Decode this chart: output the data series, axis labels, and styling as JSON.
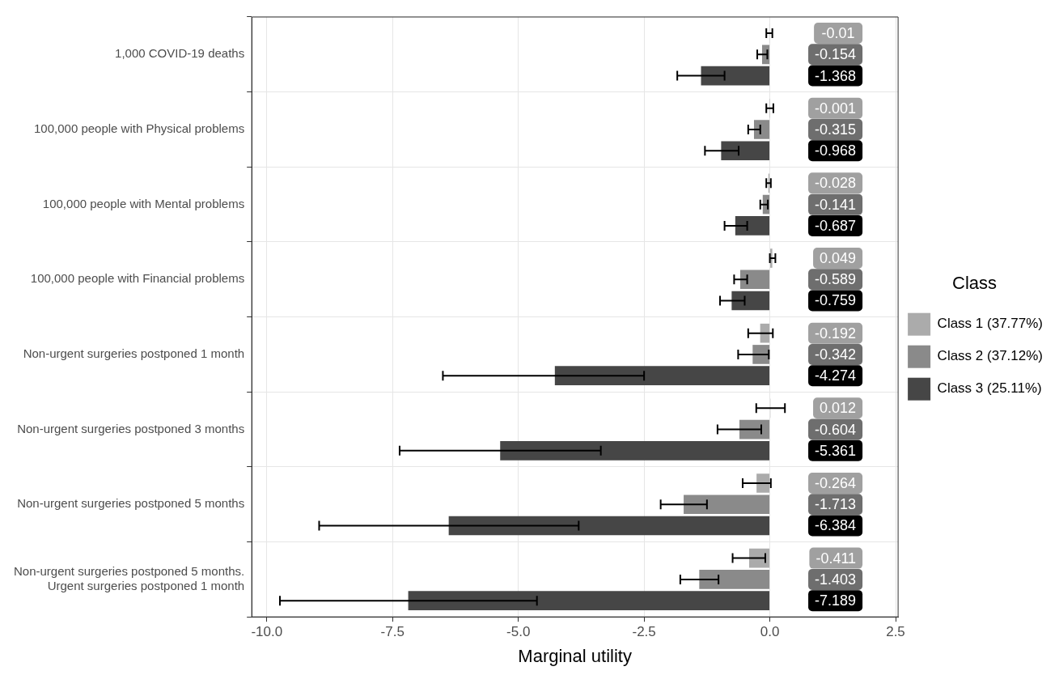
{
  "chart_data": {
    "type": "bar",
    "orientation": "horizontal",
    "xlabel": "Marginal utility",
    "legend_title": "Class",
    "legend": "right",
    "categories": [
      "1,000 COVID-19 deaths",
      "100,000 people with Physical problems",
      "100,000 people with Mental problems",
      "100,000 people with Financial problems",
      "Non-urgent surgeries postponed 1 month",
      "Non-urgent surgeries postponed 3 months",
      "Non-urgent surgeries postponed 5 months",
      "Non-urgent surgeries postponed 5 months.\nUrgent surgeries postponed 1 month"
    ],
    "series": [
      {
        "name": "Class 1 (37.77%)",
        "color": "#ababab",
        "values": [
          -0.01,
          -0.001,
          -0.028,
          0.049,
          -0.192,
          0.012,
          -0.264,
          -0.411
        ],
        "errors": [
          [
            -0.07,
            0.05
          ],
          [
            -0.07,
            0.07
          ],
          [
            -0.07,
            0.02
          ],
          [
            0.0,
            0.11
          ],
          [
            -0.43,
            0.06
          ],
          [
            -0.27,
            0.3
          ],
          [
            -0.54,
            0.02
          ],
          [
            -0.74,
            -0.09
          ]
        ]
      },
      {
        "name": "Class 2 (37.12%)",
        "color": "#8a8a8a",
        "values": [
          -0.154,
          -0.315,
          -0.141,
          -0.589,
          -0.342,
          -0.604,
          -1.713,
          -1.403
        ],
        "errors": [
          [
            -0.25,
            -0.05
          ],
          [
            -0.43,
            -0.19
          ],
          [
            -0.19,
            -0.04
          ],
          [
            -0.71,
            -0.45
          ],
          [
            -0.63,
            -0.02
          ],
          [
            -1.04,
            -0.17
          ],
          [
            -2.17,
            -1.25
          ],
          [
            -1.78,
            -1.02
          ]
        ]
      },
      {
        "name": "Class 3 (25.11%)",
        "color": "#464646",
        "values": [
          -1.368,
          -0.968,
          -0.687,
          -0.759,
          -4.274,
          -5.361,
          -6.384,
          -7.189
        ],
        "errors": [
          [
            -1.84,
            -0.9
          ],
          [
            -1.29,
            -0.62
          ],
          [
            -0.9,
            -0.45
          ],
          [
            -0.99,
            -0.5
          ],
          [
            -6.5,
            -2.5
          ],
          [
            -7.36,
            -3.36
          ],
          [
            -8.96,
            -3.8
          ],
          [
            -9.74,
            -4.63
          ]
        ]
      }
    ],
    "data_labels": true,
    "xlim": [
      -10.3,
      2.55
    ],
    "xticks": [
      {
        "value": -10,
        "label": "-10.0"
      },
      {
        "value": -7.5,
        "label": "-7.5"
      },
      {
        "value": -5,
        "label": "-5.0"
      },
      {
        "value": -2.5,
        "label": "-2.5"
      },
      {
        "value": 0,
        "label": "0.0"
      },
      {
        "value": 2.5,
        "label": "2.5"
      }
    ],
    "grid": true
  }
}
